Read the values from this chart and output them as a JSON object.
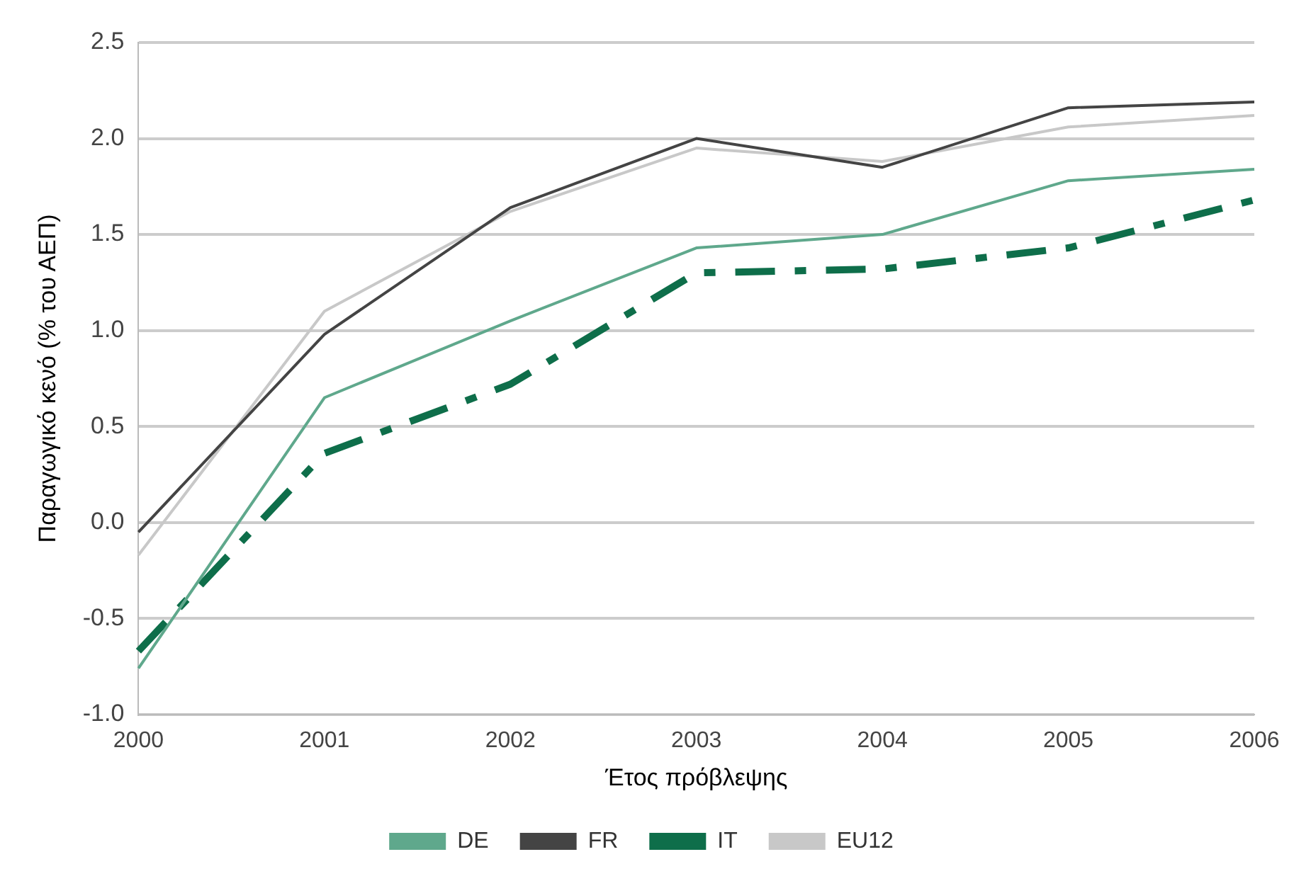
{
  "chart_data": {
    "type": "line",
    "xlabel": "Έτος πρόβλεψης",
    "ylabel": "Παραγωγικό κενό (% του ΑΕΠ)",
    "categories": [
      "2000",
      "2001",
      "2002",
      "2003",
      "2004",
      "2005",
      "2006"
    ],
    "series": [
      {
        "name": "DE",
        "color": "#5fa88c",
        "line_style": "solid",
        "values": [
          -0.76,
          0.65,
          1.05,
          1.43,
          1.5,
          1.78,
          1.84
        ]
      },
      {
        "name": "FR",
        "color": "#444444",
        "line_style": "solid",
        "values": [
          -0.05,
          0.98,
          1.64,
          2.0,
          1.85,
          2.16,
          2.19
        ]
      },
      {
        "name": "IT",
        "color": "#0e6e4a",
        "line_style": "dashed",
        "values": [
          -0.67,
          0.36,
          0.72,
          1.3,
          1.32,
          1.43,
          1.68
        ]
      },
      {
        "name": "EU12",
        "color": "#c8c8c8",
        "line_style": "solid",
        "values": [
          -0.17,
          1.1,
          1.62,
          1.95,
          1.88,
          2.06,
          2.12
        ]
      }
    ],
    "ylim": [
      -1,
      2.5
    ],
    "yticks": [
      {
        "value": -1,
        "label": "-1.0"
      },
      -0.5,
      {
        "value": 0,
        "label": "0.0"
      },
      0.5,
      {
        "value": 1,
        "label": "1.0"
      },
      1.5,
      {
        "value": 2,
        "label": "2.0"
      },
      2.5
    ],
    "grid": "y",
    "legend": "bottom",
    "marker": "none"
  }
}
